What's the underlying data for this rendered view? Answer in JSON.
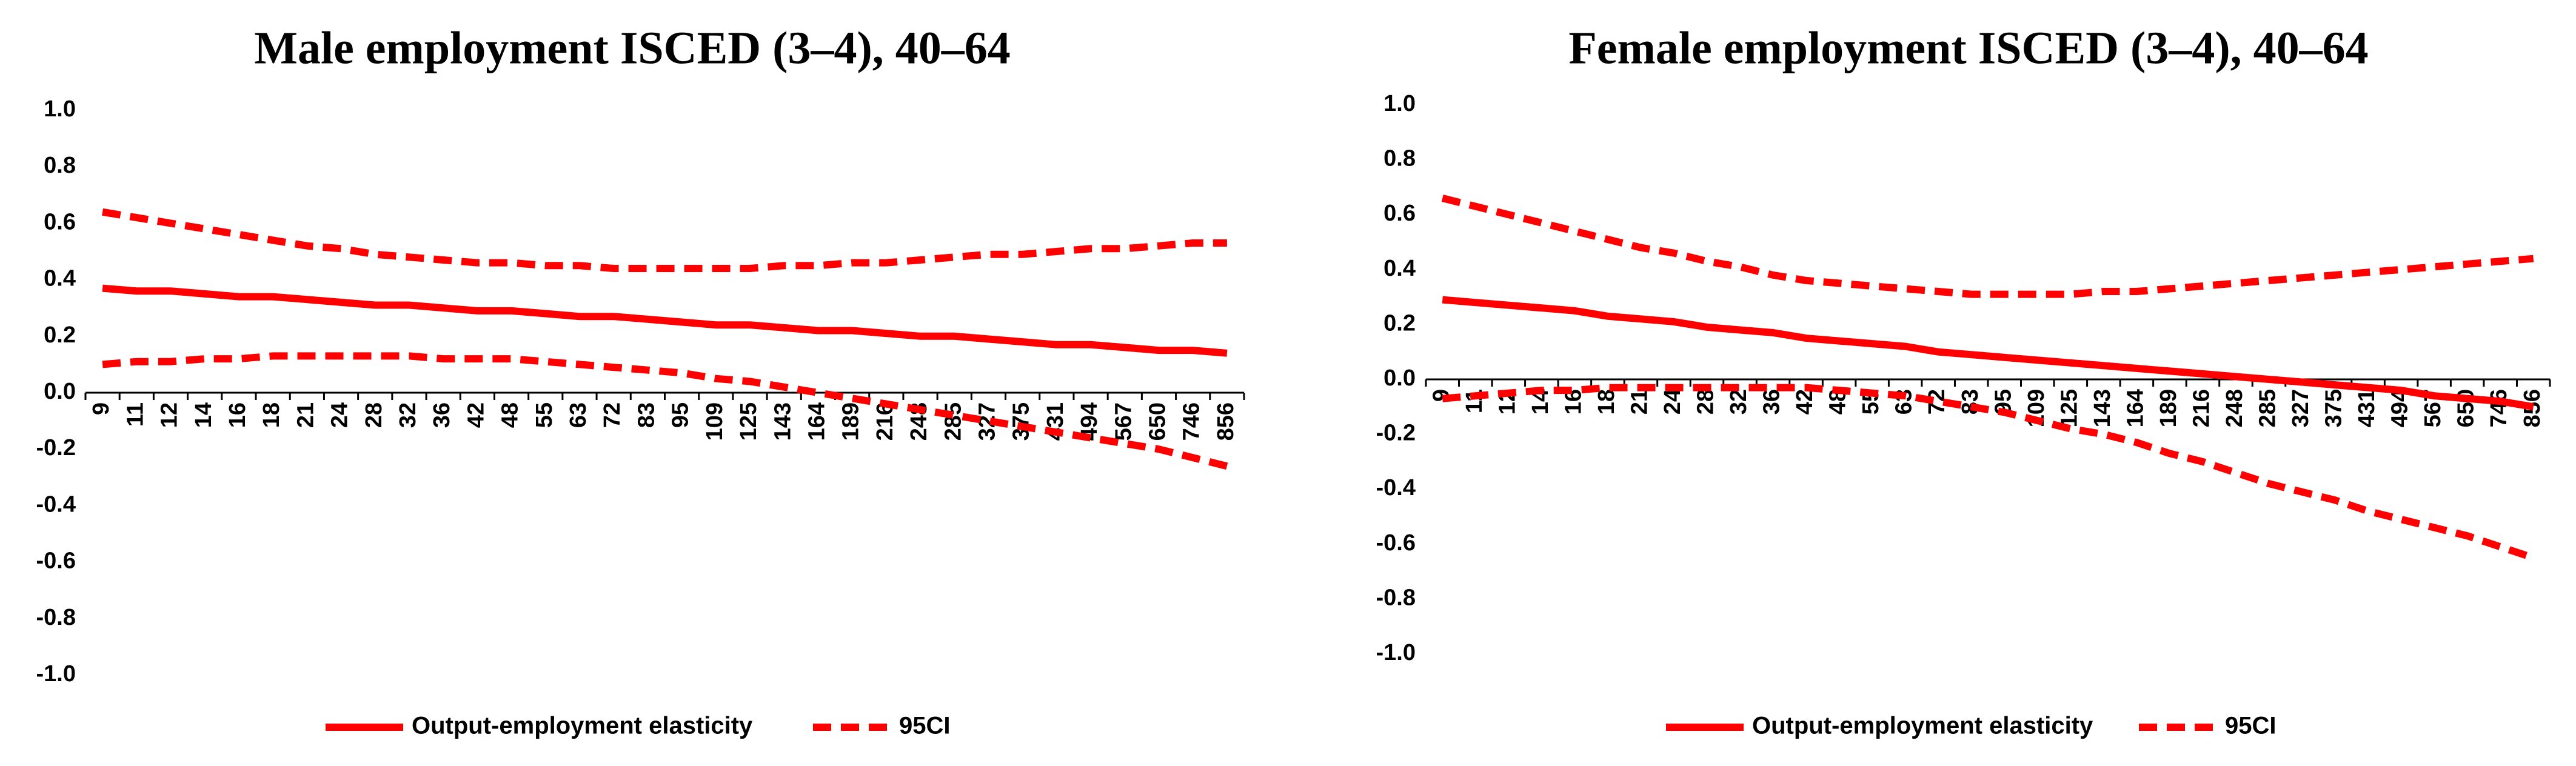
{
  "chart_data": [
    {
      "type": "line",
      "title": "Male employment ISCED (3–4), 40–64",
      "categories": [
        "9",
        "11",
        "12",
        "14",
        "16",
        "18",
        "21",
        "24",
        "28",
        "32",
        "36",
        "42",
        "48",
        "55",
        "63",
        "72",
        "83",
        "95",
        "109",
        "125",
        "143",
        "164",
        "189",
        "216",
        "248",
        "285",
        "327",
        "375",
        "431",
        "494",
        "567",
        "650",
        "746",
        "856"
      ],
      "ylim": [
        -1,
        1
      ],
      "yticks": [
        {
          "value": -1,
          "label": "-1.0"
        },
        {
          "value": -0.8,
          "label": "-0.8"
        },
        {
          "value": -0.6,
          "label": "-0.6"
        },
        {
          "value": -0.4,
          "label": "-0.4"
        },
        {
          "value": -0.2,
          "label": "-0.2"
        },
        {
          "value": 0,
          "label": "0.0"
        },
        {
          "value": 0.2,
          "label": "0.2"
        },
        {
          "value": 0.4,
          "label": "0.4"
        },
        {
          "value": 0.6,
          "label": "0.6"
        },
        {
          "value": 0.8,
          "label": "0.8"
        },
        {
          "value": 1,
          "label": "1.0"
        }
      ],
      "series": [
        {
          "name": "Output-employment elasticity",
          "color": "#ff0000",
          "style": "solid",
          "values": [
            0.37,
            0.36,
            0.36,
            0.35,
            0.34,
            0.34,
            0.33,
            0.32,
            0.31,
            0.31,
            0.3,
            0.29,
            0.29,
            0.28,
            0.27,
            0.27,
            0.26,
            0.25,
            0.24,
            0.24,
            0.23,
            0.22,
            0.22,
            0.21,
            0.2,
            0.2,
            0.19,
            0.18,
            0.17,
            0.17,
            0.16,
            0.15,
            0.15,
            0.14
          ]
        },
        {
          "name": "95CI",
          "color": "#ff0000",
          "style": "dashed",
          "upper": [
            0.64,
            0.62,
            0.6,
            0.58,
            0.56,
            0.54,
            0.52,
            0.51,
            0.49,
            0.48,
            0.47,
            0.46,
            0.46,
            0.45,
            0.45,
            0.44,
            0.44,
            0.44,
            0.44,
            0.44,
            0.45,
            0.45,
            0.46,
            0.46,
            0.47,
            0.48,
            0.49,
            0.49,
            0.5,
            0.51,
            0.51,
            0.52,
            0.53,
            0.53
          ],
          "lower": [
            0.1,
            0.11,
            0.11,
            0.12,
            0.12,
            0.13,
            0.13,
            0.13,
            0.13,
            0.13,
            0.12,
            0.12,
            0.12,
            0.11,
            0.1,
            0.09,
            0.08,
            0.07,
            0.05,
            0.04,
            0.02,
            0.0,
            -0.02,
            -0.04,
            -0.06,
            -0.08,
            -0.1,
            -0.12,
            -0.14,
            -0.16,
            -0.18,
            -0.2,
            -0.23,
            -0.26
          ]
        }
      ]
    },
    {
      "type": "line",
      "title": "Female employment ISCED (3–4), 40–64",
      "categories": [
        "9",
        "11",
        "12",
        "14",
        "16",
        "18",
        "21",
        "24",
        "28",
        "32",
        "36",
        "42",
        "48",
        "55",
        "63",
        "72",
        "83",
        "95",
        "109",
        "125",
        "143",
        "164",
        "189",
        "216",
        "248",
        "285",
        "327",
        "375",
        "431",
        "494",
        "567",
        "650",
        "746",
        "856"
      ],
      "ylim": [
        -1,
        1
      ],
      "yticks": [
        {
          "value": -1,
          "label": "-1.0"
        },
        {
          "value": -0.8,
          "label": "-0.8"
        },
        {
          "value": -0.6,
          "label": "-0.6"
        },
        {
          "value": -0.4,
          "label": "-0.4"
        },
        {
          "value": -0.2,
          "label": "-0.2"
        },
        {
          "value": 0,
          "label": "0.0"
        },
        {
          "value": 0.2,
          "label": "0.2"
        },
        {
          "value": 0.4,
          "label": "0.4"
        },
        {
          "value": 0.6,
          "label": "0.6"
        },
        {
          "value": 0.8,
          "label": "0.8"
        },
        {
          "value": 1,
          "label": "1.0"
        }
      ],
      "series": [
        {
          "name": "Output-employment elasticity",
          "color": "#ff0000",
          "style": "solid",
          "values": [
            0.29,
            0.28,
            0.27,
            0.26,
            0.25,
            0.23,
            0.22,
            0.21,
            0.19,
            0.18,
            0.17,
            0.15,
            0.14,
            0.13,
            0.12,
            0.1,
            0.09,
            0.08,
            0.07,
            0.06,
            0.05,
            0.04,
            0.03,
            0.02,
            0.01,
            0.0,
            -0.01,
            -0.02,
            -0.03,
            -0.04,
            -0.06,
            -0.07,
            -0.08,
            -0.1
          ]
        },
        {
          "name": "95CI",
          "color": "#ff0000",
          "style": "dashed",
          "upper": [
            0.66,
            0.63,
            0.6,
            0.57,
            0.54,
            0.51,
            0.48,
            0.46,
            0.43,
            0.41,
            0.38,
            0.36,
            0.35,
            0.34,
            0.33,
            0.32,
            0.31,
            0.31,
            0.31,
            0.31,
            0.32,
            0.32,
            0.33,
            0.34,
            0.35,
            0.36,
            0.37,
            0.38,
            0.39,
            0.4,
            0.41,
            0.42,
            0.43,
            0.44
          ],
          "lower": [
            -0.07,
            -0.06,
            -0.05,
            -0.04,
            -0.04,
            -0.03,
            -0.03,
            -0.03,
            -0.03,
            -0.03,
            -0.03,
            -0.03,
            -0.04,
            -0.05,
            -0.06,
            -0.08,
            -0.1,
            -0.12,
            -0.15,
            -0.18,
            -0.2,
            -0.23,
            -0.27,
            -0.3,
            -0.34,
            -0.38,
            -0.41,
            -0.44,
            -0.48,
            -0.51,
            -0.54,
            -0.57,
            -0.61,
            -0.65
          ]
        }
      ]
    }
  ]
}
